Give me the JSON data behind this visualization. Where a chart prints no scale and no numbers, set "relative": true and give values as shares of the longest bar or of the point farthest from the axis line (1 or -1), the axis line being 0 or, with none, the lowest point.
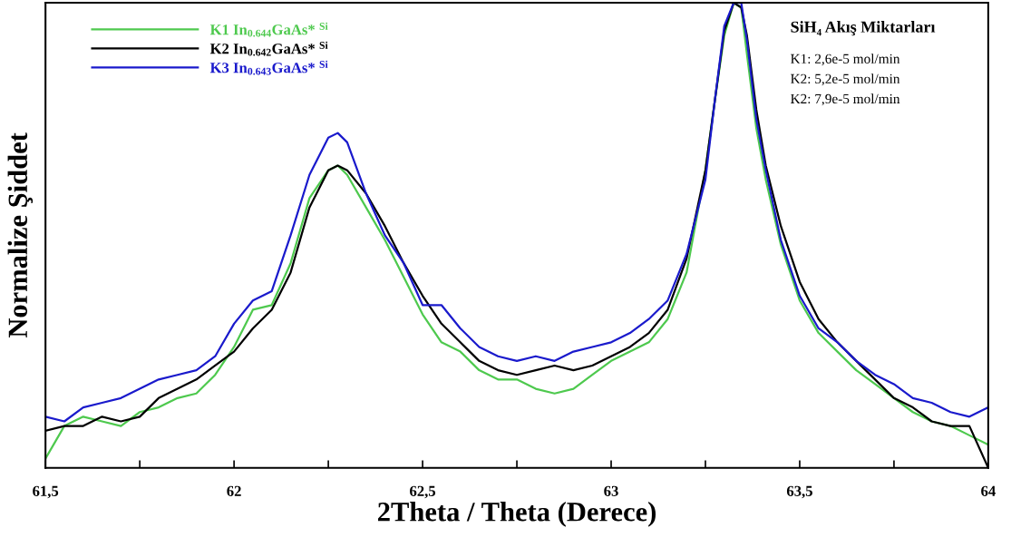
{
  "chart_data": {
    "type": "line",
    "relative": true,
    "xlabel": "2Theta / Theta (Derece)",
    "ylabel": "Normalize Şiddet",
    "x": [
      61.5,
      61.55,
      61.6,
      61.65,
      61.7,
      61.75,
      61.8,
      61.85,
      61.9,
      61.95,
      62.0,
      62.05,
      62.1,
      62.15,
      62.2,
      62.25,
      62.275,
      62.3,
      62.35,
      62.4,
      62.45,
      62.5,
      62.55,
      62.6,
      62.65,
      62.7,
      62.75,
      62.8,
      62.85,
      62.9,
      62.95,
      63.0,
      63.05,
      63.1,
      63.15,
      63.2,
      63.25,
      63.275,
      63.3,
      63.325,
      63.345,
      63.36,
      63.385,
      63.41,
      63.45,
      63.5,
      63.55,
      63.6,
      63.65,
      63.7,
      63.75,
      63.8,
      63.85,
      63.9,
      63.95,
      64.0
    ],
    "series": [
      {
        "name": "K1 In$_{0.644}$GaAs* $^{Si}$",
        "color": "#4ec94e",
        "values": [
          0.02,
          0.09,
          0.11,
          0.1,
          0.09,
          0.12,
          0.13,
          0.15,
          0.16,
          0.2,
          0.26,
          0.34,
          0.35,
          0.44,
          0.58,
          0.64,
          0.65,
          0.63,
          0.56,
          0.49,
          0.41,
          0.33,
          0.27,
          0.25,
          0.21,
          0.19,
          0.19,
          0.17,
          0.16,
          0.17,
          0.2,
          0.23,
          0.25,
          0.27,
          0.32,
          0.42,
          0.64,
          0.79,
          0.93,
          1.0,
          0.99,
          0.89,
          0.73,
          0.62,
          0.48,
          0.36,
          0.29,
          0.25,
          0.21,
          0.18,
          0.15,
          0.12,
          0.1,
          0.09,
          0.07,
          0.05
        ]
      },
      {
        "name": "K2 In$_{0.642}$GaAs* $^{Si}$",
        "color": "#000000",
        "values": [
          0.08,
          0.09,
          0.09,
          0.11,
          0.1,
          0.11,
          0.15,
          0.17,
          0.19,
          0.22,
          0.25,
          0.3,
          0.34,
          0.42,
          0.56,
          0.64,
          0.65,
          0.64,
          0.59,
          0.52,
          0.44,
          0.37,
          0.31,
          0.27,
          0.23,
          0.21,
          0.2,
          0.21,
          0.22,
          0.21,
          0.22,
          0.24,
          0.26,
          0.29,
          0.34,
          0.45,
          0.64,
          0.79,
          0.94,
          1.0,
          0.99,
          0.93,
          0.77,
          0.65,
          0.52,
          0.4,
          0.32,
          0.27,
          0.23,
          0.19,
          0.15,
          0.13,
          0.1,
          0.09,
          0.09,
          0.0
        ]
      },
      {
        "name": "K3 In$_{0.643}$GaAs* $^{Si}$",
        "color": "#1a1acc",
        "values": [
          0.11,
          0.1,
          0.13,
          0.14,
          0.15,
          0.17,
          0.19,
          0.2,
          0.21,
          0.24,
          0.31,
          0.36,
          0.38,
          0.5,
          0.63,
          0.71,
          0.72,
          0.7,
          0.59,
          0.5,
          0.44,
          0.35,
          0.35,
          0.3,
          0.26,
          0.24,
          0.23,
          0.24,
          0.23,
          0.25,
          0.26,
          0.27,
          0.29,
          0.32,
          0.36,
          0.46,
          0.62,
          0.79,
          0.95,
          1.0,
          1.0,
          0.92,
          0.75,
          0.64,
          0.49,
          0.37,
          0.3,
          0.27,
          0.23,
          0.2,
          0.18,
          0.15,
          0.14,
          0.12,
          0.11,
          0.13
        ]
      }
    ],
    "xlim": [
      61.5,
      64
    ],
    "xticks": [
      {
        "value": 61.5,
        "label": "61,5"
      },
      {
        "value": 61.75,
        "label": null
      },
      62,
      {
        "value": 62.25,
        "label": null
      },
      {
        "value": 62.5,
        "label": "62,5"
      },
      {
        "value": 62.75,
        "label": null
      },
      63,
      {
        "value": 63.25,
        "label": null
      },
      {
        "value": 63.5,
        "label": "63,5"
      },
      {
        "value": 63.75,
        "label": null
      },
      64
    ],
    "annotations": [
      "SiH₄ Akış Miktarları",
      "K1: 2,6e-5 mol/min",
      "K2: 5,2e-5 mol/min",
      "K2: 7,9e-5 mol/min"
    ],
    "legend": "top left",
    "grid": false,
    "marker": "none",
    "line_style": "solid"
  }
}
